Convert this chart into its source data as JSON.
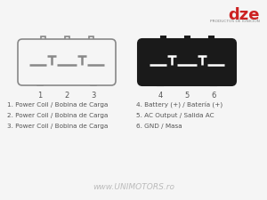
{
  "background_color": "#f5f5f5",
  "legend_left": [
    "1. Power Coil / Bobina de Carga",
    "2. Power Coil / Bobina de Carga",
    "3. Power Coil / Bobina de Carga"
  ],
  "legend_right": [
    "4. Battery (+) / Batería (+)",
    "5. AC Output / Salida AC",
    "6. GND / Masa"
  ],
  "legend_fontsize": 5.2,
  "legend_color": "#555555",
  "watermark": "www.UNIMOTORS.ro",
  "watermark_color": "#bbbbbb",
  "watermark_fontsize": 6.5,
  "dze_logo_text": "dze",
  "dze_sub_text": "PRODUCTOS DE IGNICION",
  "dze_color": "#cc2222",
  "dze_sub_color": "#888888",
  "connector_edge_color": "#888888",
  "connector_right_fill": "#1a1a1a",
  "connector_right_edge": "#1a1a1a"
}
